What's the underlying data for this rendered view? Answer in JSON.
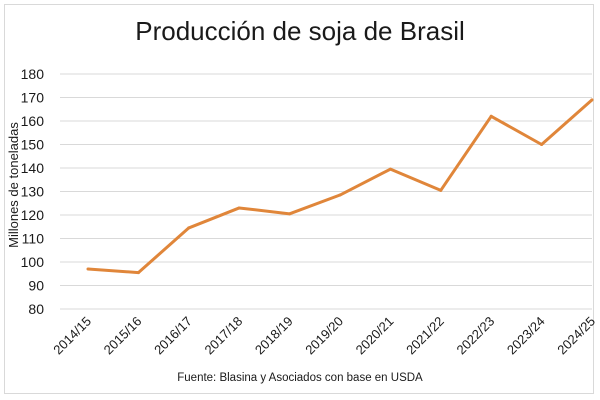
{
  "chart_data": {
    "type": "line",
    "title": "Producción de soja de Brasil",
    "ylabel": "Millones de toneladas",
    "xlabel": "",
    "source": "Fuente: Blasina y Asociados con base en USDA",
    "categories": [
      "2014/15",
      "2015/16",
      "2016/17",
      "2017/18",
      "2018/19",
      "2019/20",
      "2020/21",
      "2021/22",
      "2022/23",
      "2023/24",
      "2024/25"
    ],
    "series": [
      {
        "values": [
          97,
          95.5,
          114.5,
          123,
          120.5,
          128.5,
          139.5,
          130.5,
          162,
          150,
          169
        ],
        "color": "#e0863a"
      }
    ],
    "ylim": [
      80,
      180
    ],
    "yticks": [
      80,
      90,
      100,
      110,
      120,
      130,
      140,
      150,
      160,
      170,
      180
    ],
    "grid": true,
    "gridlines_color": "#d9d9d9",
    "legend": "none"
  }
}
